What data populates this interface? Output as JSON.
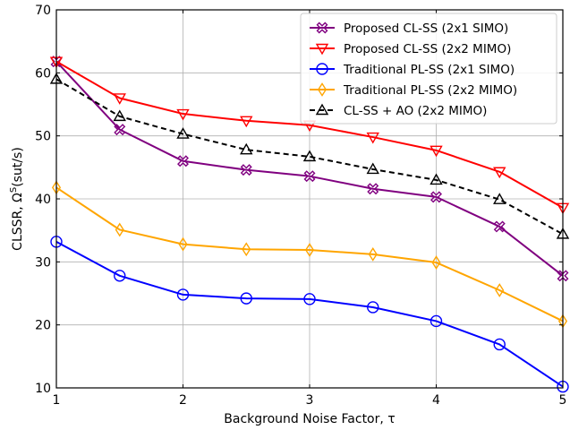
{
  "chart_data": {
    "type": "line",
    "xlabel": "Background Noise Factor, τ",
    "ylabel": "CLSSR, Ω",
    "ylabel_sup": "S",
    "ylabel_suffix": "(sut/s)",
    "xlim": [
      1,
      5
    ],
    "ylim": [
      10,
      70
    ],
    "xticks": [
      1,
      2,
      3,
      4,
      5
    ],
    "yticks": [
      10,
      20,
      30,
      40,
      50,
      60,
      70
    ],
    "grid": true,
    "legend_position": "top-right",
    "x": [
      1,
      1.5,
      2,
      2.5,
      3,
      3.5,
      4,
      4.5,
      5
    ],
    "series": [
      {
        "name": "Proposed CL-SS (2x1 SIMO)",
        "color": "#800080",
        "marker": "x-circle",
        "dash": "solid",
        "values": [
          61.8,
          51.0,
          46.0,
          44.6,
          43.6,
          41.6,
          40.3,
          35.6,
          27.8
        ]
      },
      {
        "name": "Proposed CL-SS (2x2 MIMO)",
        "color": "#ff0000",
        "marker": "triangle-down",
        "dash": "solid",
        "values": [
          61.8,
          56.0,
          53.5,
          52.4,
          51.7,
          49.8,
          47.7,
          44.3,
          38.6
        ]
      },
      {
        "name": "Traditional PL-SS (2x1 SIMO)",
        "color": "#0000ff",
        "marker": "circle",
        "dash": "solid",
        "values": [
          33.2,
          27.8,
          24.8,
          24.2,
          24.1,
          22.8,
          20.6,
          16.9,
          10.2
        ]
      },
      {
        "name": "Traditional PL-SS (2x2 MIMO)",
        "color": "#ffa500",
        "marker": "diamond",
        "dash": "solid",
        "values": [
          41.8,
          35.1,
          32.8,
          32.0,
          31.9,
          31.2,
          29.9,
          25.5,
          20.6
        ]
      },
      {
        "name": "CL-SS + AO (2x2 MIMO)",
        "color": "#000000",
        "marker": "triangle-up",
        "dash": "dashed",
        "values": [
          59.0,
          53.1,
          50.3,
          47.8,
          46.7,
          44.7,
          43.0,
          39.9,
          34.4
        ]
      }
    ]
  }
}
